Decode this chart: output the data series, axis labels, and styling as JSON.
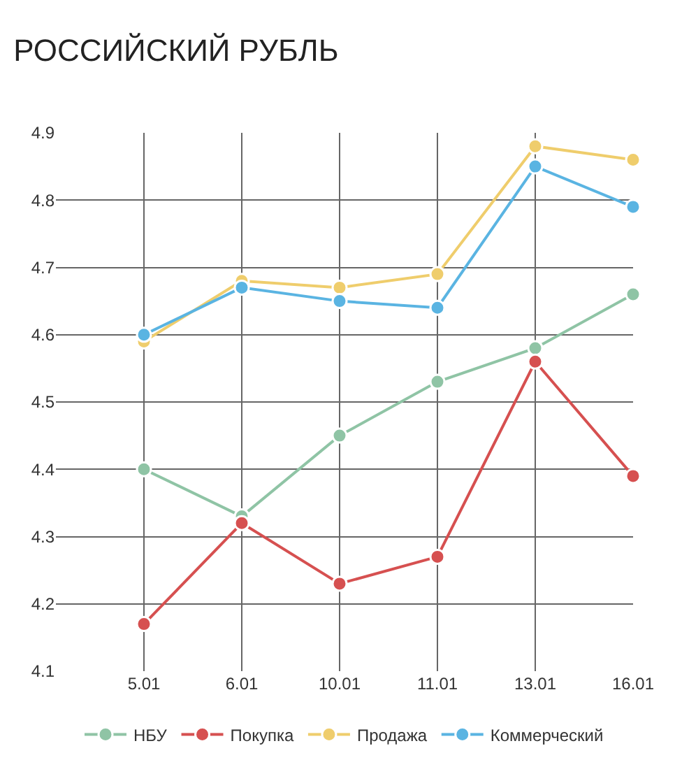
{
  "chart_data": {
    "type": "line",
    "title": "РОССИЙСКИЙ РУБЛЬ",
    "categories": [
      "5.01",
      "6.01",
      "10.01",
      "11.01",
      "13.01",
      "16.01"
    ],
    "series": [
      {
        "name": "НБУ",
        "color": "#8fc4a5",
        "values": [
          4.4,
          4.33,
          4.45,
          4.53,
          4.58,
          4.66
        ]
      },
      {
        "name": "Покупка",
        "color": "#d65050",
        "values": [
          4.17,
          4.32,
          4.23,
          4.27,
          4.56,
          4.39
        ]
      },
      {
        "name": "Продажа",
        "color": "#efcd6c",
        "values": [
          4.59,
          4.68,
          4.67,
          4.69,
          4.88,
          4.86
        ]
      },
      {
        "name": "Коммерческий",
        "color": "#5ab4e2",
        "values": [
          4.6,
          4.67,
          4.65,
          4.64,
          4.85,
          4.79
        ]
      }
    ],
    "ylim": [
      4.1,
      4.9
    ],
    "yticks": [
      4.1,
      4.2,
      4.3,
      4.4,
      4.5,
      4.6,
      4.7,
      4.8,
      4.9
    ],
    "grid": true,
    "legend": "bottom",
    "marker": "circle",
    "line_style": "solid"
  }
}
